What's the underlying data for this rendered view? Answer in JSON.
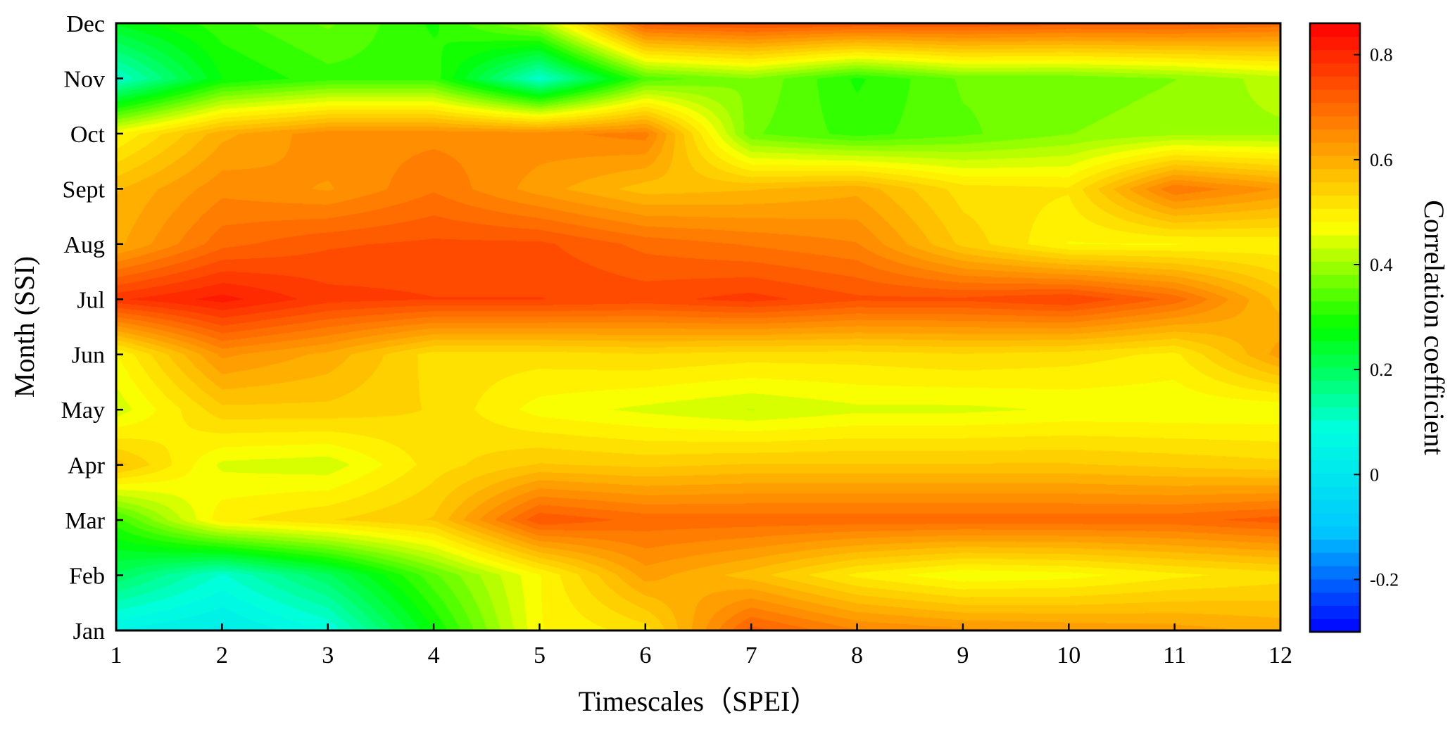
{
  "chart_data": {
    "type": "heatmap",
    "title": "",
    "xlabel": "Timescales（SPEI）",
    "ylabel": "Month (SSI)",
    "colorbar_label": "Correlation coefficient",
    "x": [
      1,
      2,
      3,
      4,
      5,
      6,
      7,
      8,
      9,
      10,
      11,
      12
    ],
    "x_ticks": [
      "1",
      "2",
      "3",
      "4",
      "5",
      "6",
      "7",
      "8",
      "9",
      "10",
      "11",
      "12"
    ],
    "y": [
      "Jan",
      "Feb",
      "Mar",
      "Apr",
      "May",
      "Jun",
      "Jul",
      "Aug",
      "Sept",
      "Oct",
      "Nov",
      "Dec"
    ],
    "zlim": [
      -0.3,
      0.86
    ],
    "colorbar_ticks": [
      -0.2,
      0,
      0.2,
      0.4,
      0.6,
      0.8
    ],
    "colorbar_tick_labels": [
      "-0.2",
      "0",
      "0.2",
      "0.4",
      "0.6",
      "0.8"
    ],
    "colormap": [
      "#0000ff",
      "#00c8ff",
      "#00ffe0",
      "#00ff00",
      "#ffff00",
      "#ff8000",
      "#ff0000"
    ],
    "z": [
      [
        0.05,
        0.02,
        0.08,
        0.28,
        0.48,
        0.52,
        0.72,
        0.66,
        0.64,
        0.63,
        0.62,
        0.6
      ],
      [
        0.2,
        0.1,
        0.2,
        0.35,
        0.48,
        0.62,
        0.57,
        0.5,
        0.46,
        0.47,
        0.5,
        0.52
      ],
      [
        0.32,
        0.5,
        0.53,
        0.56,
        0.73,
        0.7,
        0.7,
        0.7,
        0.7,
        0.7,
        0.7,
        0.72
      ],
      [
        0.57,
        0.45,
        0.44,
        0.52,
        0.56,
        0.55,
        0.56,
        0.56,
        0.56,
        0.56,
        0.55,
        0.54
      ],
      [
        0.44,
        0.55,
        0.55,
        0.53,
        0.47,
        0.45,
        0.43,
        0.45,
        0.45,
        0.46,
        0.46,
        0.46
      ],
      [
        0.48,
        0.64,
        0.6,
        0.52,
        0.52,
        0.53,
        0.52,
        0.52,
        0.53,
        0.52,
        0.5,
        0.62
      ],
      [
        0.78,
        0.82,
        0.77,
        0.76,
        0.76,
        0.75,
        0.77,
        0.74,
        0.74,
        0.76,
        0.7,
        0.57
      ],
      [
        0.6,
        0.7,
        0.73,
        0.74,
        0.74,
        0.7,
        0.68,
        0.66,
        0.55,
        0.48,
        0.48,
        0.49
      ],
      [
        0.58,
        0.65,
        0.63,
        0.68,
        0.62,
        0.57,
        0.58,
        0.6,
        0.52,
        0.51,
        0.68,
        0.63
      ],
      [
        0.48,
        0.6,
        0.65,
        0.65,
        0.65,
        0.67,
        0.36,
        0.32,
        0.35,
        0.38,
        0.4,
        0.4
      ],
      [
        0.1,
        0.28,
        0.32,
        0.32,
        0.1,
        0.34,
        0.38,
        0.3,
        0.36,
        0.36,
        0.38,
        0.42
      ],
      [
        0.26,
        0.32,
        0.36,
        0.3,
        0.4,
        0.72,
        0.74,
        0.73,
        0.73,
        0.72,
        0.72,
        0.7
      ]
    ]
  }
}
